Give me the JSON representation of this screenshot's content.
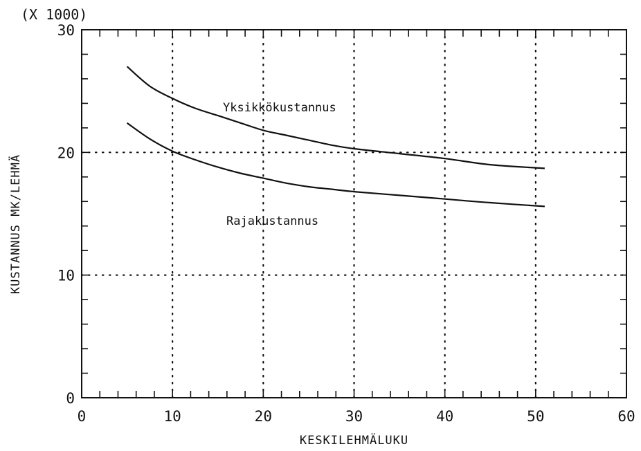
{
  "chart_data": {
    "type": "line",
    "scale_note": "(X 1000)",
    "xlabel": "KESKILEHMÄLUKU",
    "ylabel": "KUSTANNUS MK/LEHMÄ",
    "xlim": [
      0,
      60
    ],
    "ylim": [
      0,
      30
    ],
    "xticks": [
      "0",
      "10",
      "20",
      "30",
      "40",
      "50",
      "60"
    ],
    "yticks": [
      "0",
      "10",
      "20",
      "30"
    ],
    "grid": "dotted",
    "series": [
      {
        "name": "Yksikkökustannus",
        "x": [
          5,
          7.5,
          10,
          12.5,
          15,
          17.5,
          20,
          22.5,
          25,
          27.5,
          30,
          35,
          40,
          45,
          51
        ],
        "y": [
          27,
          25.4,
          24.4,
          23.6,
          23,
          22.4,
          21.8,
          21.4,
          21,
          20.6,
          20.3,
          19.9,
          19.5,
          19.0,
          18.7
        ]
      },
      {
        "name": "Rajakustannus",
        "x": [
          5,
          7.5,
          10,
          12.5,
          15,
          17.5,
          20,
          22.5,
          25,
          27.5,
          30,
          35,
          40,
          45,
          51
        ],
        "y": [
          22.4,
          21.1,
          20.1,
          19.4,
          18.8,
          18.3,
          17.9,
          17.5,
          17.2,
          17.0,
          16.8,
          16.5,
          16.2,
          15.9,
          15.6
        ]
      }
    ]
  }
}
